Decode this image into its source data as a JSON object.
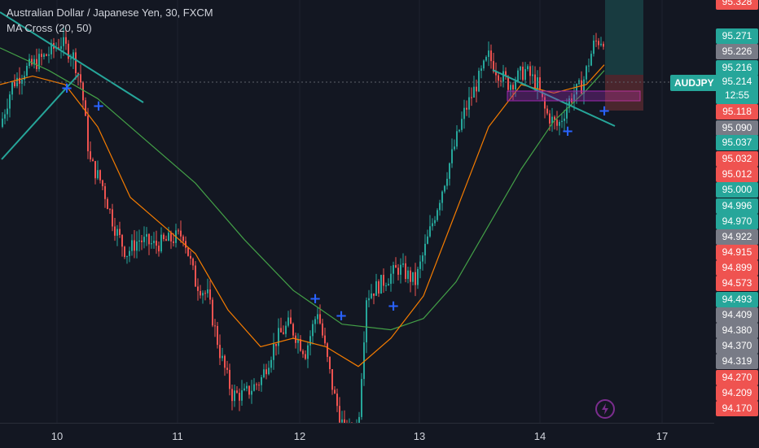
{
  "legend": {
    "title": "Australian Dollar / Japanese Yen, 30, FXCM",
    "indicator": "MA Cross (20, 50)"
  },
  "symbol_tag": "AUDJPY",
  "last_price": {
    "value": "95.214",
    "countdown": "12:55"
  },
  "colors": {
    "up": "#26a69a",
    "down": "#ef5350",
    "ma20": "#f57c00",
    "ma50": "#43a047",
    "trendline": "#26a69a",
    "cross_marker": "#2962ff",
    "neutral_label": "#787b86",
    "background": "#131722"
  },
  "price_labels": [
    {
      "text": "95.328",
      "color": "#ef5350"
    },
    {
      "text": "95.271",
      "color": "#26a69a"
    },
    {
      "text": "95.226",
      "color": "#787b86"
    },
    {
      "text": "95.216",
      "color": "#26a69a"
    },
    {
      "text": "95.118",
      "color": "#ef5350"
    },
    {
      "text": "95.090",
      "color": "#787b86"
    },
    {
      "text": "95.037",
      "color": "#26a69a"
    },
    {
      "text": "95.032",
      "color": "#ef5350"
    },
    {
      "text": "95.012",
      "color": "#ef5350"
    },
    {
      "text": "95.000",
      "color": "#26a69a"
    },
    {
      "text": "94.996",
      "color": "#26a69a"
    },
    {
      "text": "94.970",
      "color": "#26a69a"
    },
    {
      "text": "94.922",
      "color": "#787b86"
    },
    {
      "text": "94.915",
      "color": "#ef5350"
    },
    {
      "text": "94.899",
      "color": "#ef5350"
    },
    {
      "text": "94.573",
      "color": "#ef5350"
    },
    {
      "text": "94.493",
      "color": "#26a69a"
    },
    {
      "text": "94.409",
      "color": "#787b86"
    },
    {
      "text": "94.380",
      "color": "#787b86"
    },
    {
      "text": "94.370",
      "color": "#787b86"
    },
    {
      "text": "94.319",
      "color": "#787b86"
    },
    {
      "text": "94.270",
      "color": "#ef5350"
    },
    {
      "text": "94.209",
      "color": "#ef5350"
    },
    {
      "text": "94.170",
      "color": "#ef5350"
    }
  ],
  "time_labels": [
    "10",
    "11",
    "12",
    "13",
    "14",
    "17"
  ],
  "chart_data": {
    "type": "candlestick",
    "symbol": "AUDJPY",
    "timeframe": "30",
    "ylim": [
      93.85,
      95.35
    ],
    "x": [
      "10",
      "11",
      "12",
      "13",
      "14",
      "17"
    ],
    "close_path": [
      [
        0,
        94.9
      ],
      [
        15,
        95.05
      ],
      [
        30,
        95.1
      ],
      [
        55,
        95.15
      ],
      [
        75,
        95.2
      ],
      [
        90,
        95.15
      ],
      [
        100,
        95.05
      ],
      [
        110,
        94.78
      ],
      [
        125,
        94.7
      ],
      [
        140,
        94.55
      ],
      [
        155,
        94.45
      ],
      [
        170,
        94.5
      ],
      [
        190,
        94.48
      ],
      [
        210,
        94.5
      ],
      [
        225,
        94.52
      ],
      [
        240,
        94.35
      ],
      [
        255,
        94.3
      ],
      [
        270,
        94.1
      ],
      [
        285,
        93.95
      ],
      [
        300,
        93.95
      ],
      [
        320,
        94.0
      ],
      [
        340,
        94.15
      ],
      [
        355,
        94.2
      ],
      [
        375,
        94.1
      ],
      [
        390,
        94.25
      ],
      [
        400,
        94.1
      ],
      [
        410,
        93.95
      ],
      [
        425,
        93.8
      ],
      [
        440,
        93.85
      ],
      [
        450,
        94.3
      ],
      [
        470,
        94.35
      ],
      [
        490,
        94.4
      ],
      [
        510,
        94.35
      ],
      [
        525,
        94.5
      ],
      [
        540,
        94.65
      ],
      [
        555,
        94.8
      ],
      [
        570,
        94.95
      ],
      [
        585,
        95.05
      ],
      [
        600,
        95.15
      ],
      [
        610,
        95.1
      ],
      [
        625,
        95.05
      ],
      [
        645,
        95.1
      ],
      [
        660,
        95.05
      ],
      [
        670,
        94.95
      ],
      [
        685,
        94.9
      ],
      [
        700,
        95.0
      ],
      [
        715,
        95.05
      ],
      [
        730,
        95.2
      ],
      [
        742,
        95.214
      ]
    ],
    "ma20_path": [
      [
        0,
        95.05
      ],
      [
        40,
        95.08
      ],
      [
        80,
        95.05
      ],
      [
        120,
        94.9
      ],
      [
        160,
        94.65
      ],
      [
        200,
        94.55
      ],
      [
        240,
        94.45
      ],
      [
        280,
        94.25
      ],
      [
        320,
        94.12
      ],
      [
        360,
        94.15
      ],
      [
        400,
        94.12
      ],
      [
        440,
        94.05
      ],
      [
        480,
        94.15
      ],
      [
        520,
        94.3
      ],
      [
        560,
        94.6
      ],
      [
        600,
        94.9
      ],
      [
        640,
        95.05
      ],
      [
        680,
        95.02
      ],
      [
        720,
        95.05
      ],
      [
        742,
        95.12
      ]
    ],
    "ma50_path": [
      [
        0,
        95.18
      ],
      [
        60,
        95.1
      ],
      [
        120,
        95.0
      ],
      [
        180,
        94.85
      ],
      [
        240,
        94.7
      ],
      [
        300,
        94.5
      ],
      [
        360,
        94.32
      ],
      [
        420,
        94.2
      ],
      [
        480,
        94.18
      ],
      [
        520,
        94.22
      ],
      [
        560,
        94.35
      ],
      [
        600,
        94.55
      ],
      [
        640,
        94.75
      ],
      [
        680,
        94.92
      ],
      [
        720,
        95.03
      ],
      [
        742,
        95.1
      ]
    ]
  }
}
